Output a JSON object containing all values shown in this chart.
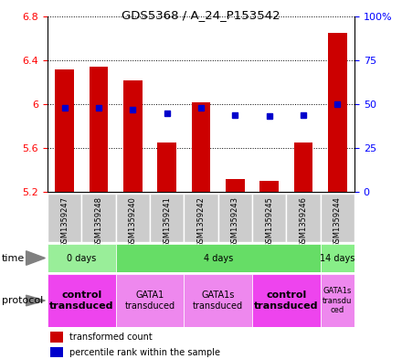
{
  "title": "GDS5368 / A_24_P153542",
  "samples": [
    "GSM1359247",
    "GSM1359248",
    "GSM1359240",
    "GSM1359241",
    "GSM1359242",
    "GSM1359243",
    "GSM1359245",
    "GSM1359246",
    "GSM1359244"
  ],
  "transformed_counts": [
    6.32,
    6.34,
    6.22,
    5.65,
    6.02,
    5.32,
    5.3,
    5.65,
    6.65
  ],
  "percentile_ranks": [
    48,
    48,
    47,
    45,
    48,
    44,
    43,
    44,
    50
  ],
  "ylim": [
    5.2,
    6.8
  ],
  "y_left_ticks": [
    5.2,
    5.6,
    6.0,
    6.4,
    6.8
  ],
  "y_left_labels": [
    "5.2",
    "5.6",
    "6",
    "6.4",
    "6.8"
  ],
  "y_right_ticks": [
    0,
    25,
    50,
    75,
    100
  ],
  "y_right_labels": [
    "0",
    "25",
    "50",
    "75",
    "100%"
  ],
  "bar_color": "#cc0000",
  "dot_color": "#0000cc",
  "bar_bottom": 5.2,
  "time_groups": [
    {
      "label": "0 days",
      "start": 0,
      "end": 2,
      "color": "#99ee99"
    },
    {
      "label": "4 days",
      "start": 2,
      "end": 8,
      "color": "#66dd66"
    },
    {
      "label": "14 days",
      "start": 8,
      "end": 9,
      "color": "#88ee88"
    }
  ],
  "protocol_groups": [
    {
      "label": "control\ntransduced",
      "start": 0,
      "end": 2,
      "color": "#ee44ee",
      "bold": true,
      "fontsize": 8
    },
    {
      "label": "GATA1\ntransduced",
      "start": 2,
      "end": 4,
      "color": "#ee88ee",
      "bold": false,
      "fontsize": 7
    },
    {
      "label": "GATA1s\ntransduced",
      "start": 4,
      "end": 6,
      "color": "#ee88ee",
      "bold": false,
      "fontsize": 7
    },
    {
      "label": "control\ntransduced",
      "start": 6,
      "end": 8,
      "color": "#ee44ee",
      "bold": true,
      "fontsize": 8
    },
    {
      "label": "GATA1s\ntransdu\nced",
      "start": 8,
      "end": 9,
      "color": "#ee88ee",
      "bold": false,
      "fontsize": 6
    }
  ],
  "legend_items": [
    {
      "color": "#cc0000",
      "label": "transformed count"
    },
    {
      "color": "#0000cc",
      "label": "percentile rank within the sample"
    }
  ],
  "sample_bg_color": "#cccccc",
  "sample_border_color": "#ffffff"
}
